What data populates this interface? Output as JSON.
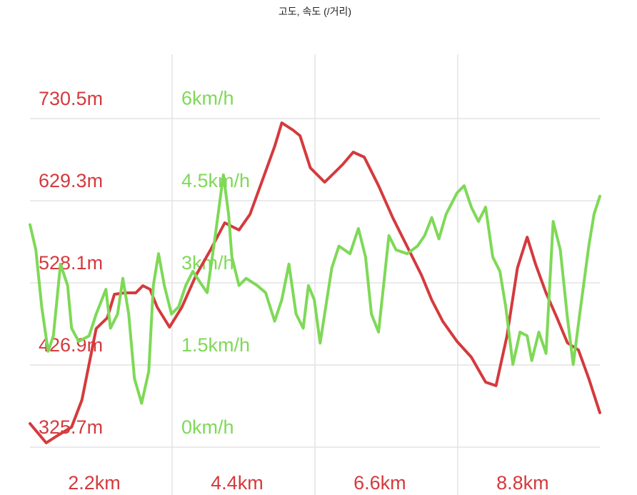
{
  "chart_data": {
    "type": "line",
    "title": "고도, 속도 (/거리)",
    "xlim": [
      1.21,
      9.99
    ],
    "xticks": [
      {
        "value": 2.2,
        "label": "2.2km"
      },
      {
        "value": 4.4,
        "label": "4.4km"
      },
      {
        "value": 6.6,
        "label": "6.6km"
      },
      {
        "value": 8.8,
        "label": "8.8km"
      }
    ],
    "ylim": [
      325.7,
      809.7
    ],
    "yticks": [
      {
        "value": 325.7,
        "label": "325.7m"
      },
      {
        "value": 426.9,
        "label": "426.9m"
      },
      {
        "value": 528.1,
        "label": "528.1m"
      },
      {
        "value": 629.3,
        "label": "629.3m"
      },
      {
        "value": 730.5,
        "label": "730.5m"
      }
    ],
    "y2lim": [
      0,
      7.17
    ],
    "y2ticks": [
      {
        "value": 0,
        "label": "0km/h"
      },
      {
        "value": 1.5,
        "label": "1.5km/h"
      },
      {
        "value": 3,
        "label": "3km/h"
      },
      {
        "value": 4.5,
        "label": "4.5km/h"
      },
      {
        "value": 6,
        "label": "6km/h"
      }
    ],
    "grid": true,
    "series": [
      {
        "color": "#d43a3d",
        "axis": "y",
        "x": [
          1.21,
          1.46,
          1.63,
          1.85,
          2.01,
          2.12,
          2.23,
          2.4,
          2.51,
          2.67,
          2.84,
          2.95,
          3.06,
          3.17,
          3.36,
          3.55,
          3.77,
          3.99,
          4.21,
          4.43,
          4.6,
          4.82,
          4.98,
          5.09,
          5.26,
          5.37,
          5.53,
          5.75,
          5.92,
          6.03,
          6.19,
          6.36,
          6.58,
          6.8,
          7.02,
          7.24,
          7.4,
          7.57,
          7.79,
          8.01,
          8.23,
          8.39,
          8.56,
          8.72,
          8.87,
          9.0,
          9.16,
          9.33,
          9.49,
          9.66,
          9.82,
          9.99
        ],
        "values": [
          354.7,
          331.0,
          339.8,
          350.3,
          383.8,
          427.8,
          471.8,
          485.0,
          514.0,
          515.8,
          515.8,
          524.6,
          520.2,
          498.2,
          473.5,
          498.2,
          537.8,
          568.6,
          602.0,
          593.2,
          612.6,
          661.0,
          696.2,
          725.2,
          716.4,
          709.4,
          669.8,
          652.2,
          665.4,
          674.2,
          689.1,
          683.0,
          647.8,
          608.2,
          573.0,
          537.8,
          507.0,
          480.6,
          455.9,
          436.6,
          405.8,
          401.4,
          463.0,
          546.6,
          584.4,
          551.0,
          515.8,
          485.0,
          454.2,
          445.4,
          410.2,
          368.0
        ]
      },
      {
        "color": "#7ed957",
        "axis": "y2",
        "x": [
          1.21,
          1.3,
          1.39,
          1.49,
          1.57,
          1.68,
          1.79,
          1.85,
          1.96,
          2.12,
          2.23,
          2.38,
          2.45,
          2.56,
          2.64,
          2.73,
          2.82,
          2.93,
          3.04,
          3.11,
          3.19,
          3.28,
          3.39,
          3.5,
          3.61,
          3.72,
          3.83,
          3.94,
          4.05,
          4.19,
          4.27,
          4.32,
          4.43,
          4.54,
          4.71,
          4.84,
          4.98,
          5.09,
          5.2,
          5.31,
          5.42,
          5.5,
          5.59,
          5.68,
          5.75,
          5.86,
          5.97,
          6.14,
          6.27,
          6.38,
          6.47,
          6.58,
          6.74,
          6.85,
          7.02,
          7.18,
          7.29,
          7.4,
          7.51,
          7.62,
          7.79,
          7.9,
          8.01,
          8.12,
          8.23,
          8.34,
          8.45,
          8.54,
          8.65,
          8.76,
          8.87,
          8.94,
          9.05,
          9.16,
          9.27,
          9.38,
          9.49,
          9.58,
          9.68,
          9.82,
          9.9,
          9.99
        ],
        "values": [
          4.06,
          3.6,
          2.56,
          1.75,
          2.03,
          3.34,
          2.95,
          2.17,
          1.93,
          2.03,
          2.43,
          2.88,
          2.17,
          2.43,
          3.08,
          2.43,
          1.25,
          0.8,
          1.38,
          2.95,
          3.53,
          2.95,
          2.43,
          2.56,
          2.95,
          3.21,
          3.01,
          2.82,
          3.73,
          4.97,
          4.25,
          3.47,
          2.95,
          3.08,
          2.95,
          2.82,
          2.3,
          2.69,
          3.34,
          2.43,
          2.17,
          2.95,
          2.69,
          1.9,
          2.43,
          3.27,
          3.67,
          3.53,
          3.99,
          3.47,
          2.43,
          2.1,
          3.86,
          3.6,
          3.53,
          3.67,
          3.86,
          4.19,
          3.8,
          4.25,
          4.64,
          4.77,
          4.38,
          4.12,
          4.38,
          3.47,
          3.21,
          2.56,
          1.51,
          2.1,
          2.03,
          1.58,
          2.1,
          1.71,
          4.12,
          3.6,
          2.36,
          1.51,
          2.43,
          3.67,
          4.25,
          4.58
        ]
      }
    ]
  }
}
